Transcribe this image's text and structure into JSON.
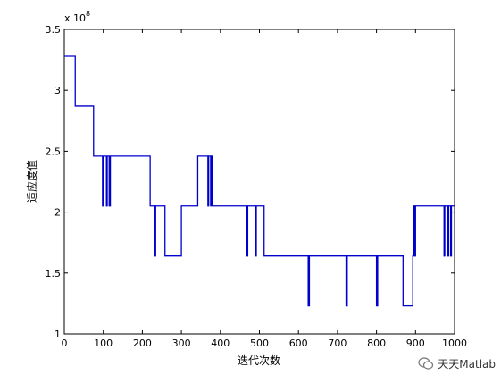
{
  "chart_data": {
    "type": "line",
    "xlabel": "迭代次数",
    "ylabel": "适应度值",
    "exponent_label": "x 10",
    "exponent_power": "8",
    "xlim": [
      0,
      1000
    ],
    "ylim": [
      1,
      3.5
    ],
    "x_ticks": [
      "0",
      "100",
      "200",
      "300",
      "400",
      "500",
      "600",
      "700",
      "800",
      "900",
      "1000"
    ],
    "y_ticks": [
      "1",
      "1.5",
      "2",
      "2.5",
      "3",
      "3.5"
    ],
    "series_color": "#0000cc",
    "unit_scale": 100000000,
    "x": [
      0,
      28,
      28,
      75,
      75,
      98,
      98,
      100,
      100,
      108,
      108,
      110,
      110,
      115,
      115,
      118,
      118,
      220,
      220,
      232,
      232,
      234,
      234,
      238,
      238,
      258,
      258,
      264,
      264,
      300,
      300,
      342,
      342,
      368,
      368,
      370,
      370,
      375,
      375,
      377,
      377,
      380,
      380,
      454,
      454,
      468,
      468,
      470,
      470,
      490,
      490,
      492,
      492,
      512,
      512,
      625,
      625,
      628,
      628,
      722,
      722,
      725,
      725,
      800,
      800,
      803,
      803,
      868,
      868,
      880,
      880,
      893,
      893,
      895,
      895,
      897,
      897,
      900,
      900,
      973,
      973,
      975,
      975,
      982,
      982,
      985,
      985,
      990,
      990,
      992,
      992,
      995,
      995,
      1000
    ],
    "y": [
      3.28,
      3.28,
      2.87,
      2.87,
      2.46,
      2.46,
      2.05,
      2.05,
      2.46,
      2.46,
      2.05,
      2.05,
      2.46,
      2.46,
      2.05,
      2.05,
      2.46,
      2.46,
      2.05,
      2.05,
      1.64,
      1.64,
      2.05,
      2.05,
      2.05,
      2.05,
      1.64,
      1.64,
      1.64,
      1.64,
      2.05,
      2.05,
      2.46,
      2.46,
      2.05,
      2.05,
      2.46,
      2.46,
      2.05,
      2.05,
      2.46,
      2.46,
      2.05,
      2.05,
      2.05,
      2.05,
      1.64,
      1.64,
      2.05,
      2.05,
      1.64,
      1.64,
      2.05,
      2.05,
      1.64,
      1.64,
      1.23,
      1.23,
      1.64,
      1.64,
      1.23,
      1.23,
      1.64,
      1.64,
      1.23,
      1.23,
      1.64,
      1.64,
      1.23,
      1.23,
      1.23,
      1.23,
      1.64,
      1.64,
      2.05,
      2.05,
      1.64,
      1.64,
      2.05,
      2.05,
      1.64,
      1.64,
      2.05,
      2.05,
      1.64,
      1.64,
      2.05,
      2.05,
      1.64,
      1.64,
      2.05,
      2.05,
      2.05,
      2.05
    ]
  },
  "watermark": {
    "text": "天天Matlab"
  }
}
